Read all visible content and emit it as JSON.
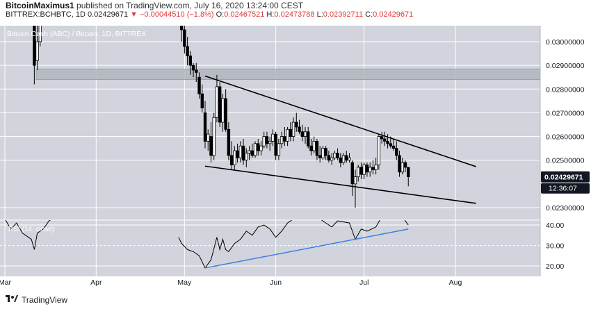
{
  "header": {
    "author": "BitcoinMaximus1",
    "published_text": "published on TradingView.com, July 16, 2020 13:24:00 CEST",
    "symbol_line": "BITTREX:BCHBTC, 1D",
    "last": "0.02429671",
    "change": "−0.00044510 (−1.8%)",
    "o_label": "O:",
    "o_value": "0.02467521",
    "h_label": "H:",
    "h_value": "0.02473788",
    "l_label": "L:",
    "l_value": "0.02392711",
    "c_label": "C:",
    "c_value": "0.02429671"
  },
  "footer": {
    "brand": "TradingView"
  },
  "colors": {
    "price_bg": "#d1d4dc",
    "rsi_bg": "#d1d4dc",
    "zone": "#b2b5be",
    "candle": "#000000",
    "rsi_line": "#000000",
    "rsi_trend": "#3d7fe0",
    "price_label_bg": "#131722",
    "axis_text": "#131722"
  },
  "chart_data": [
    {
      "type": "candlestick",
      "title": "Bitcoin Cash (ABC) / Bitcoin, 1D, BITTREX",
      "ylim": [
        0.0222,
        0.0312
      ],
      "y_ticks": [
        "0.02300000",
        "0.02500000",
        "0.02600000",
        "0.02700000",
        "0.02800000",
        "0.02900000",
        "0.03000000"
      ],
      "x_ticks": [
        {
          "label": "Mar",
          "date": "2020-03-01"
        },
        {
          "label": "Apr",
          "date": "2020-04-01"
        },
        {
          "label": "May",
          "date": "2020-05-01"
        },
        {
          "label": "Jun",
          "date": "2020-06-01"
        },
        {
          "label": "Jul",
          "date": "2020-07-01"
        },
        {
          "label": "Aug",
          "date": "2020-08-01"
        }
      ],
      "last_price_label": "0.02429671",
      "countdown_label": "12:36:07",
      "resistance_zone": [
        0.0284,
        0.02885
      ],
      "trendlines": [
        {
          "name": "upper",
          "from": [
            "2020-05-08",
            0.02855
          ],
          "to": [
            "2020-08-08",
            0.02473
          ]
        },
        {
          "name": "lower",
          "from": [
            "2020-05-08",
            0.02475
          ],
          "to": [
            "2020-08-08",
            0.02318
          ]
        }
      ],
      "candles": [
        {
          "date": "2020-03-11",
          "o": 0.0313,
          "h": 0.0313,
          "l": 0.0282,
          "c": 0.029
        },
        {
          "date": "2020-03-12",
          "o": 0.0292,
          "h": 0.0313,
          "l": 0.0288,
          "c": 0.03
        },
        {
          "date": "2020-03-13",
          "o": 0.03,
          "h": 0.0313,
          "l": 0.0298,
          "c": 0.0313
        },
        {
          "date": "2020-04-30",
          "o": 0.0313,
          "h": 0.0313,
          "l": 0.03,
          "c": 0.0305
        },
        {
          "date": "2020-05-01",
          "o": 0.0305,
          "h": 0.0313,
          "l": 0.0295,
          "c": 0.0298
        },
        {
          "date": "2020-05-02",
          "o": 0.0298,
          "h": 0.0302,
          "l": 0.029,
          "c": 0.0294
        },
        {
          "date": "2020-05-03",
          "o": 0.0294,
          "h": 0.0296,
          "l": 0.0286,
          "c": 0.029
        },
        {
          "date": "2020-05-04",
          "o": 0.029,
          "h": 0.0291,
          "l": 0.0285,
          "c": 0.0288
        },
        {
          "date": "2020-05-05",
          "o": 0.0288,
          "h": 0.0291,
          "l": 0.0283,
          "c": 0.0287
        },
        {
          "date": "2020-05-06",
          "o": 0.0285,
          "h": 0.0287,
          "l": 0.0276,
          "c": 0.0278
        },
        {
          "date": "2020-05-07",
          "o": 0.0278,
          "h": 0.0282,
          "l": 0.027,
          "c": 0.0272
        },
        {
          "date": "2020-05-08",
          "o": 0.027,
          "h": 0.0275,
          "l": 0.0255,
          "c": 0.0258
        },
        {
          "date": "2020-05-09",
          "o": 0.0258,
          "h": 0.0263,
          "l": 0.0254,
          "c": 0.0261
        },
        {
          "date": "2020-05-10",
          "o": 0.026,
          "h": 0.0266,
          "l": 0.0249,
          "c": 0.0252
        },
        {
          "date": "2020-05-11",
          "o": 0.0252,
          "h": 0.027,
          "l": 0.025,
          "c": 0.0268
        },
        {
          "date": "2020-05-12",
          "o": 0.0268,
          "h": 0.0286,
          "l": 0.0266,
          "c": 0.0281
        },
        {
          "date": "2020-05-13",
          "o": 0.0281,
          "h": 0.0283,
          "l": 0.0264,
          "c": 0.0266
        },
        {
          "date": "2020-05-14",
          "o": 0.0266,
          "h": 0.0278,
          "l": 0.0262,
          "c": 0.0276
        },
        {
          "date": "2020-05-15",
          "o": 0.0276,
          "h": 0.028,
          "l": 0.0262,
          "c": 0.0263
        },
        {
          "date": "2020-05-16",
          "o": 0.0263,
          "h": 0.0266,
          "l": 0.025,
          "c": 0.0252
        },
        {
          "date": "2020-05-17",
          "o": 0.0252,
          "h": 0.0258,
          "l": 0.0246,
          "c": 0.0248
        },
        {
          "date": "2020-05-18",
          "o": 0.0248,
          "h": 0.0256,
          "l": 0.0246,
          "c": 0.0254
        },
        {
          "date": "2020-05-19",
          "o": 0.0254,
          "h": 0.0257,
          "l": 0.0249,
          "c": 0.0251
        },
        {
          "date": "2020-05-20",
          "o": 0.0251,
          "h": 0.0258,
          "l": 0.0249,
          "c": 0.0256
        },
        {
          "date": "2020-05-21",
          "o": 0.0256,
          "h": 0.0259,
          "l": 0.0248,
          "c": 0.025
        },
        {
          "date": "2020-05-22",
          "o": 0.025,
          "h": 0.0255,
          "l": 0.0247,
          "c": 0.0253
        },
        {
          "date": "2020-05-23",
          "o": 0.0253,
          "h": 0.0256,
          "l": 0.025,
          "c": 0.0254
        },
        {
          "date": "2020-05-24",
          "o": 0.0254,
          "h": 0.0257,
          "l": 0.0251,
          "c": 0.0252
        },
        {
          "date": "2020-05-25",
          "o": 0.0252,
          "h": 0.0258,
          "l": 0.0251,
          "c": 0.0257
        },
        {
          "date": "2020-05-26",
          "o": 0.0257,
          "h": 0.0259,
          "l": 0.0252,
          "c": 0.0254
        },
        {
          "date": "2020-05-27",
          "o": 0.0254,
          "h": 0.0258,
          "l": 0.0252,
          "c": 0.0256
        },
        {
          "date": "2020-05-28",
          "o": 0.0256,
          "h": 0.0262,
          "l": 0.0255,
          "c": 0.026
        },
        {
          "date": "2020-05-29",
          "o": 0.026,
          "h": 0.0262,
          "l": 0.0255,
          "c": 0.0257
        },
        {
          "date": "2020-05-30",
          "o": 0.0257,
          "h": 0.026,
          "l": 0.0254,
          "c": 0.0258
        },
        {
          "date": "2020-05-31",
          "o": 0.0258,
          "h": 0.0263,
          "l": 0.0256,
          "c": 0.0261
        },
        {
          "date": "2020-06-01",
          "o": 0.0261,
          "h": 0.0262,
          "l": 0.025,
          "c": 0.0252
        },
        {
          "date": "2020-06-02",
          "o": 0.0252,
          "h": 0.0259,
          "l": 0.025,
          "c": 0.0257
        },
        {
          "date": "2020-06-03",
          "o": 0.0257,
          "h": 0.0262,
          "l": 0.0255,
          "c": 0.026
        },
        {
          "date": "2020-06-04",
          "o": 0.026,
          "h": 0.0264,
          "l": 0.0256,
          "c": 0.0258
        },
        {
          "date": "2020-06-05",
          "o": 0.0258,
          "h": 0.0264,
          "l": 0.0256,
          "c": 0.0263
        },
        {
          "date": "2020-06-06",
          "o": 0.0263,
          "h": 0.0266,
          "l": 0.0258,
          "c": 0.026
        },
        {
          "date": "2020-06-07",
          "o": 0.026,
          "h": 0.0268,
          "l": 0.0258,
          "c": 0.0266
        },
        {
          "date": "2020-06-08",
          "o": 0.0266,
          "h": 0.027,
          "l": 0.0262,
          "c": 0.0264
        },
        {
          "date": "2020-06-09",
          "o": 0.0264,
          "h": 0.0267,
          "l": 0.0261,
          "c": 0.0262
        },
        {
          "date": "2020-06-10",
          "o": 0.0262,
          "h": 0.0265,
          "l": 0.0258,
          "c": 0.026
        },
        {
          "date": "2020-06-11",
          "o": 0.026,
          "h": 0.0264,
          "l": 0.0257,
          "c": 0.0262
        },
        {
          "date": "2020-06-12",
          "o": 0.0262,
          "h": 0.0264,
          "l": 0.0255,
          "c": 0.0256
        },
        {
          "date": "2020-06-13",
          "o": 0.0256,
          "h": 0.0259,
          "l": 0.0252,
          "c": 0.0254
        },
        {
          "date": "2020-06-14",
          "o": 0.0254,
          "h": 0.026,
          "l": 0.0253,
          "c": 0.0258
        },
        {
          "date": "2020-06-15",
          "o": 0.0258,
          "h": 0.0259,
          "l": 0.025,
          "c": 0.0252
        },
        {
          "date": "2020-06-16",
          "o": 0.0252,
          "h": 0.0256,
          "l": 0.0249,
          "c": 0.0251
        },
        {
          "date": "2020-06-17",
          "o": 0.0251,
          "h": 0.0256,
          "l": 0.025,
          "c": 0.0255
        },
        {
          "date": "2020-06-18",
          "o": 0.0255,
          "h": 0.0256,
          "l": 0.025,
          "c": 0.0252
        },
        {
          "date": "2020-06-19",
          "o": 0.0252,
          "h": 0.0254,
          "l": 0.0249,
          "c": 0.025
        },
        {
          "date": "2020-06-20",
          "o": 0.025,
          "h": 0.0253,
          "l": 0.0248,
          "c": 0.0251
        },
        {
          "date": "2020-06-21",
          "o": 0.0251,
          "h": 0.0254,
          "l": 0.025,
          "c": 0.0253
        },
        {
          "date": "2020-06-22",
          "o": 0.0253,
          "h": 0.0255,
          "l": 0.025,
          "c": 0.0251
        },
        {
          "date": "2020-06-23",
          "o": 0.0251,
          "h": 0.0253,
          "l": 0.0247,
          "c": 0.0249
        },
        {
          "date": "2020-06-24",
          "o": 0.0249,
          "h": 0.0253,
          "l": 0.0248,
          "c": 0.0252
        },
        {
          "date": "2020-06-25",
          "o": 0.0252,
          "h": 0.0254,
          "l": 0.0249,
          "c": 0.025
        },
        {
          "date": "2020-06-26",
          "o": 0.025,
          "h": 0.0253,
          "l": 0.0249,
          "c": 0.0251
        },
        {
          "date": "2020-06-27",
          "o": 0.0249,
          "h": 0.025,
          "l": 0.0235,
          "c": 0.024
        },
        {
          "date": "2020-06-28",
          "o": 0.024,
          "h": 0.0246,
          "l": 0.023,
          "c": 0.0243
        },
        {
          "date": "2020-06-29",
          "o": 0.0243,
          "h": 0.0248,
          "l": 0.0241,
          "c": 0.0247
        },
        {
          "date": "2020-06-30",
          "o": 0.0247,
          "h": 0.0249,
          "l": 0.0242,
          "c": 0.0244
        },
        {
          "date": "2020-07-01",
          "o": 0.0244,
          "h": 0.0249,
          "l": 0.0242,
          "c": 0.0248
        },
        {
          "date": "2020-07-02",
          "o": 0.0248,
          "h": 0.0249,
          "l": 0.0243,
          "c": 0.0245
        },
        {
          "date": "2020-07-03",
          "o": 0.0245,
          "h": 0.0249,
          "l": 0.0243,
          "c": 0.0247
        },
        {
          "date": "2020-07-04",
          "o": 0.0247,
          "h": 0.025,
          "l": 0.0244,
          "c": 0.0246
        },
        {
          "date": "2020-07-05",
          "o": 0.0246,
          "h": 0.0251,
          "l": 0.0244,
          "c": 0.0248
        },
        {
          "date": "2020-07-06",
          "o": 0.0248,
          "h": 0.0261,
          "l": 0.0246,
          "c": 0.026
        },
        {
          "date": "2020-07-07",
          "o": 0.026,
          "h": 0.0262,
          "l": 0.0257,
          "c": 0.0259
        },
        {
          "date": "2020-07-08",
          "o": 0.0259,
          "h": 0.0262,
          "l": 0.0256,
          "c": 0.0258
        },
        {
          "date": "2020-07-09",
          "o": 0.0258,
          "h": 0.0261,
          "l": 0.0255,
          "c": 0.0257
        },
        {
          "date": "2020-07-10",
          "o": 0.0257,
          "h": 0.026,
          "l": 0.0255,
          "c": 0.0256
        },
        {
          "date": "2020-07-11",
          "o": 0.0256,
          "h": 0.0259,
          "l": 0.0254,
          "c": 0.0255
        },
        {
          "date": "2020-07-12",
          "o": 0.0255,
          "h": 0.0258,
          "l": 0.025,
          "c": 0.0252
        },
        {
          "date": "2020-07-13",
          "o": 0.0252,
          "h": 0.0254,
          "l": 0.0243,
          "c": 0.0245
        },
        {
          "date": "2020-07-14",
          "o": 0.0245,
          "h": 0.0251,
          "l": 0.0244,
          "c": 0.0249
        },
        {
          "date": "2020-07-15",
          "o": 0.0249,
          "h": 0.025,
          "l": 0.0245,
          "c": 0.0247
        },
        {
          "date": "2020-07-16",
          "o": 0.0247,
          "h": 0.0247,
          "l": 0.0239,
          "c": 0.0243
        }
      ]
    },
    {
      "type": "line",
      "title": "RSI (14, close)",
      "ylim": [
        15,
        42
      ],
      "y_ticks": [
        "20.00",
        "30.00",
        "40.00"
      ],
      "dashed_level": 30,
      "trendline": {
        "from": [
          "2020-05-08",
          19
        ],
        "to": [
          "2020-07-16",
          38
        ]
      },
      "series": [
        {
          "points": [
            [
              "2020-03-01",
              43
            ],
            [
              "2020-03-03",
              38
            ],
            [
              "2020-03-05",
              41
            ],
            [
              "2020-03-07",
              36
            ],
            [
              "2020-03-09",
              34
            ],
            [
              "2020-03-10",
              33
            ],
            [
              "2020-03-11",
              28
            ],
            [
              "2020-03-12",
              36
            ],
            [
              "2020-03-14",
              38
            ],
            [
              "2020-03-16",
              42
            ],
            [
              "2020-03-18",
              44
            ],
            [
              "2020-04-29",
              34
            ],
            [
              "2020-04-30",
              31
            ],
            [
              "2020-05-02",
              28
            ],
            [
              "2020-05-04",
              27
            ],
            [
              "2020-05-06",
              25
            ],
            [
              "2020-05-08",
              19
            ],
            [
              "2020-05-10",
              23
            ],
            [
              "2020-05-12",
              34
            ],
            [
              "2020-05-13",
              28
            ],
            [
              "2020-05-14",
              33
            ],
            [
              "2020-05-15",
              28
            ],
            [
              "2020-05-16",
              27
            ],
            [
              "2020-05-18",
              31
            ],
            [
              "2020-05-20",
              33
            ],
            [
              "2020-05-22",
              37
            ],
            [
              "2020-05-24",
              35
            ],
            [
              "2020-05-26",
              39
            ],
            [
              "2020-05-28",
              40
            ],
            [
              "2020-05-30",
              38
            ],
            [
              "2020-06-01",
              34
            ],
            [
              "2020-06-03",
              37
            ],
            [
              "2020-06-05",
              41
            ],
            [
              "2020-06-08",
              44
            ],
            [
              "2020-06-15",
              44
            ],
            [
              "2020-06-18",
              41
            ],
            [
              "2020-06-20",
              39
            ],
            [
              "2020-06-22",
              42
            ],
            [
              "2020-06-26",
              41
            ],
            [
              "2020-06-28",
              33
            ],
            [
              "2020-06-30",
              38
            ],
            [
              "2020-07-02",
              37
            ],
            [
              "2020-07-05",
              39
            ],
            [
              "2020-07-07",
              44
            ],
            [
              "2020-07-14",
              44
            ],
            [
              "2020-07-16",
              40
            ]
          ]
        }
      ]
    }
  ]
}
